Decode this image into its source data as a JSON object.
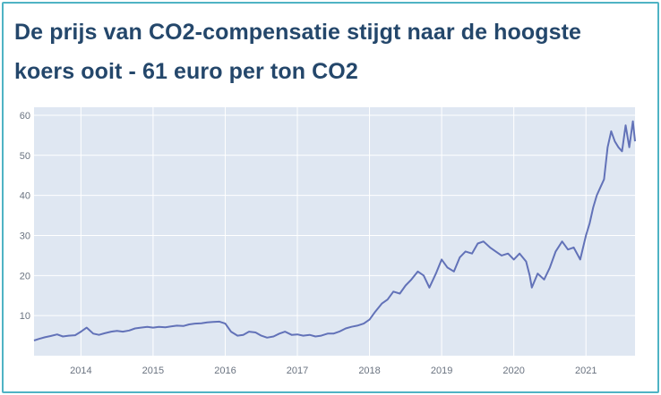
{
  "header": {
    "title": "De prijs van CO2-compensatie stijgt naar de hoogste koers ooit - 61 euro per ton CO2"
  },
  "colors": {
    "border": "#4fb3c4",
    "title": "#24476b",
    "plot_background": "#dfe7f2",
    "grid": "#ffffff",
    "line": "#6272b8"
  },
  "chart_data": {
    "type": "line",
    "title": "De prijs van CO2-compensatie stijgt naar de hoogste koers ooit - 61 euro per ton CO2",
    "xlabel": "",
    "ylabel": "",
    "xlim": [
      2013.35,
      2021.68
    ],
    "ylim": [
      0,
      62
    ],
    "x_ticks": [
      2014,
      2015,
      2016,
      2017,
      2018,
      2019,
      2020,
      2021
    ],
    "y_ticks": [
      10,
      20,
      30,
      40,
      50,
      60
    ],
    "grid": true,
    "legend": "none",
    "series": [
      {
        "x": [
          2013.35,
          2013.42,
          2013.5,
          2013.58,
          2013.67,
          2013.75,
          2013.83,
          2013.92,
          2014.0,
          2014.08,
          2014.17,
          2014.25,
          2014.33,
          2014.42,
          2014.5,
          2014.58,
          2014.67,
          2014.75,
          2014.83,
          2014.92,
          2015.0,
          2015.08,
          2015.17,
          2015.25,
          2015.33,
          2015.42,
          2015.5,
          2015.58,
          2015.67,
          2015.75,
          2015.83,
          2015.92,
          2016.0,
          2016.08,
          2016.17,
          2016.25,
          2016.33,
          2016.42,
          2016.5,
          2016.58,
          2016.67,
          2016.75,
          2016.83,
          2016.92,
          2017.0,
          2017.08,
          2017.17,
          2017.25,
          2017.33,
          2017.42,
          2017.5,
          2017.58,
          2017.67,
          2017.75,
          2017.83,
          2017.92,
          2018.0,
          2018.08,
          2018.17,
          2018.25,
          2018.33,
          2018.42,
          2018.5,
          2018.58,
          2018.67,
          2018.75,
          2018.83,
          2018.92,
          2019.0,
          2019.08,
          2019.17,
          2019.25,
          2019.33,
          2019.42,
          2019.5,
          2019.58,
          2019.67,
          2019.75,
          2019.83,
          2019.92,
          2020.0,
          2020.08,
          2020.17,
          2020.22,
          2020.25,
          2020.33,
          2020.42,
          2020.5,
          2020.58,
          2020.67,
          2020.75,
          2020.83,
          2020.92,
          2021.0,
          2021.05,
          2021.1,
          2021.15,
          2021.2,
          2021.25,
          2021.3,
          2021.35,
          2021.4,
          2021.45,
          2021.5,
          2021.55,
          2021.6,
          2021.65,
          2021.68
        ],
        "y": [
          3.8,
          4.2,
          4.6,
          4.9,
          5.3,
          4.8,
          5.0,
          5.1,
          6.0,
          7.0,
          5.5,
          5.2,
          5.6,
          6.0,
          6.2,
          6.0,
          6.3,
          6.8,
          7.0,
          7.2,
          7.0,
          7.2,
          7.1,
          7.3,
          7.5,
          7.4,
          7.8,
          8.0,
          8.1,
          8.3,
          8.4,
          8.5,
          8.0,
          6.0,
          5.0,
          5.2,
          6.0,
          5.8,
          5.0,
          4.5,
          4.8,
          5.5,
          6.0,
          5.2,
          5.3,
          5.0,
          5.2,
          4.8,
          5.0,
          5.5,
          5.5,
          6.0,
          6.8,
          7.2,
          7.5,
          8.0,
          9.0,
          11.0,
          13.0,
          14.0,
          16.0,
          15.5,
          17.5,
          19.0,
          21.0,
          20.0,
          17.0,
          20.5,
          24.0,
          22.0,
          21.0,
          24.5,
          26.0,
          25.5,
          28.0,
          28.5,
          27.0,
          26.0,
          25.0,
          25.5,
          24.0,
          25.5,
          23.5,
          20.0,
          17.0,
          20.5,
          19.0,
          22.0,
          26.0,
          28.5,
          26.5,
          27.0,
          24.0,
          30.0,
          33.0,
          37.0,
          40.0,
          42.0,
          44.0,
          52.0,
          56.0,
          53.5,
          52.0,
          51.0,
          57.5,
          52.0,
          58.5,
          53.5
        ]
      }
    ]
  }
}
